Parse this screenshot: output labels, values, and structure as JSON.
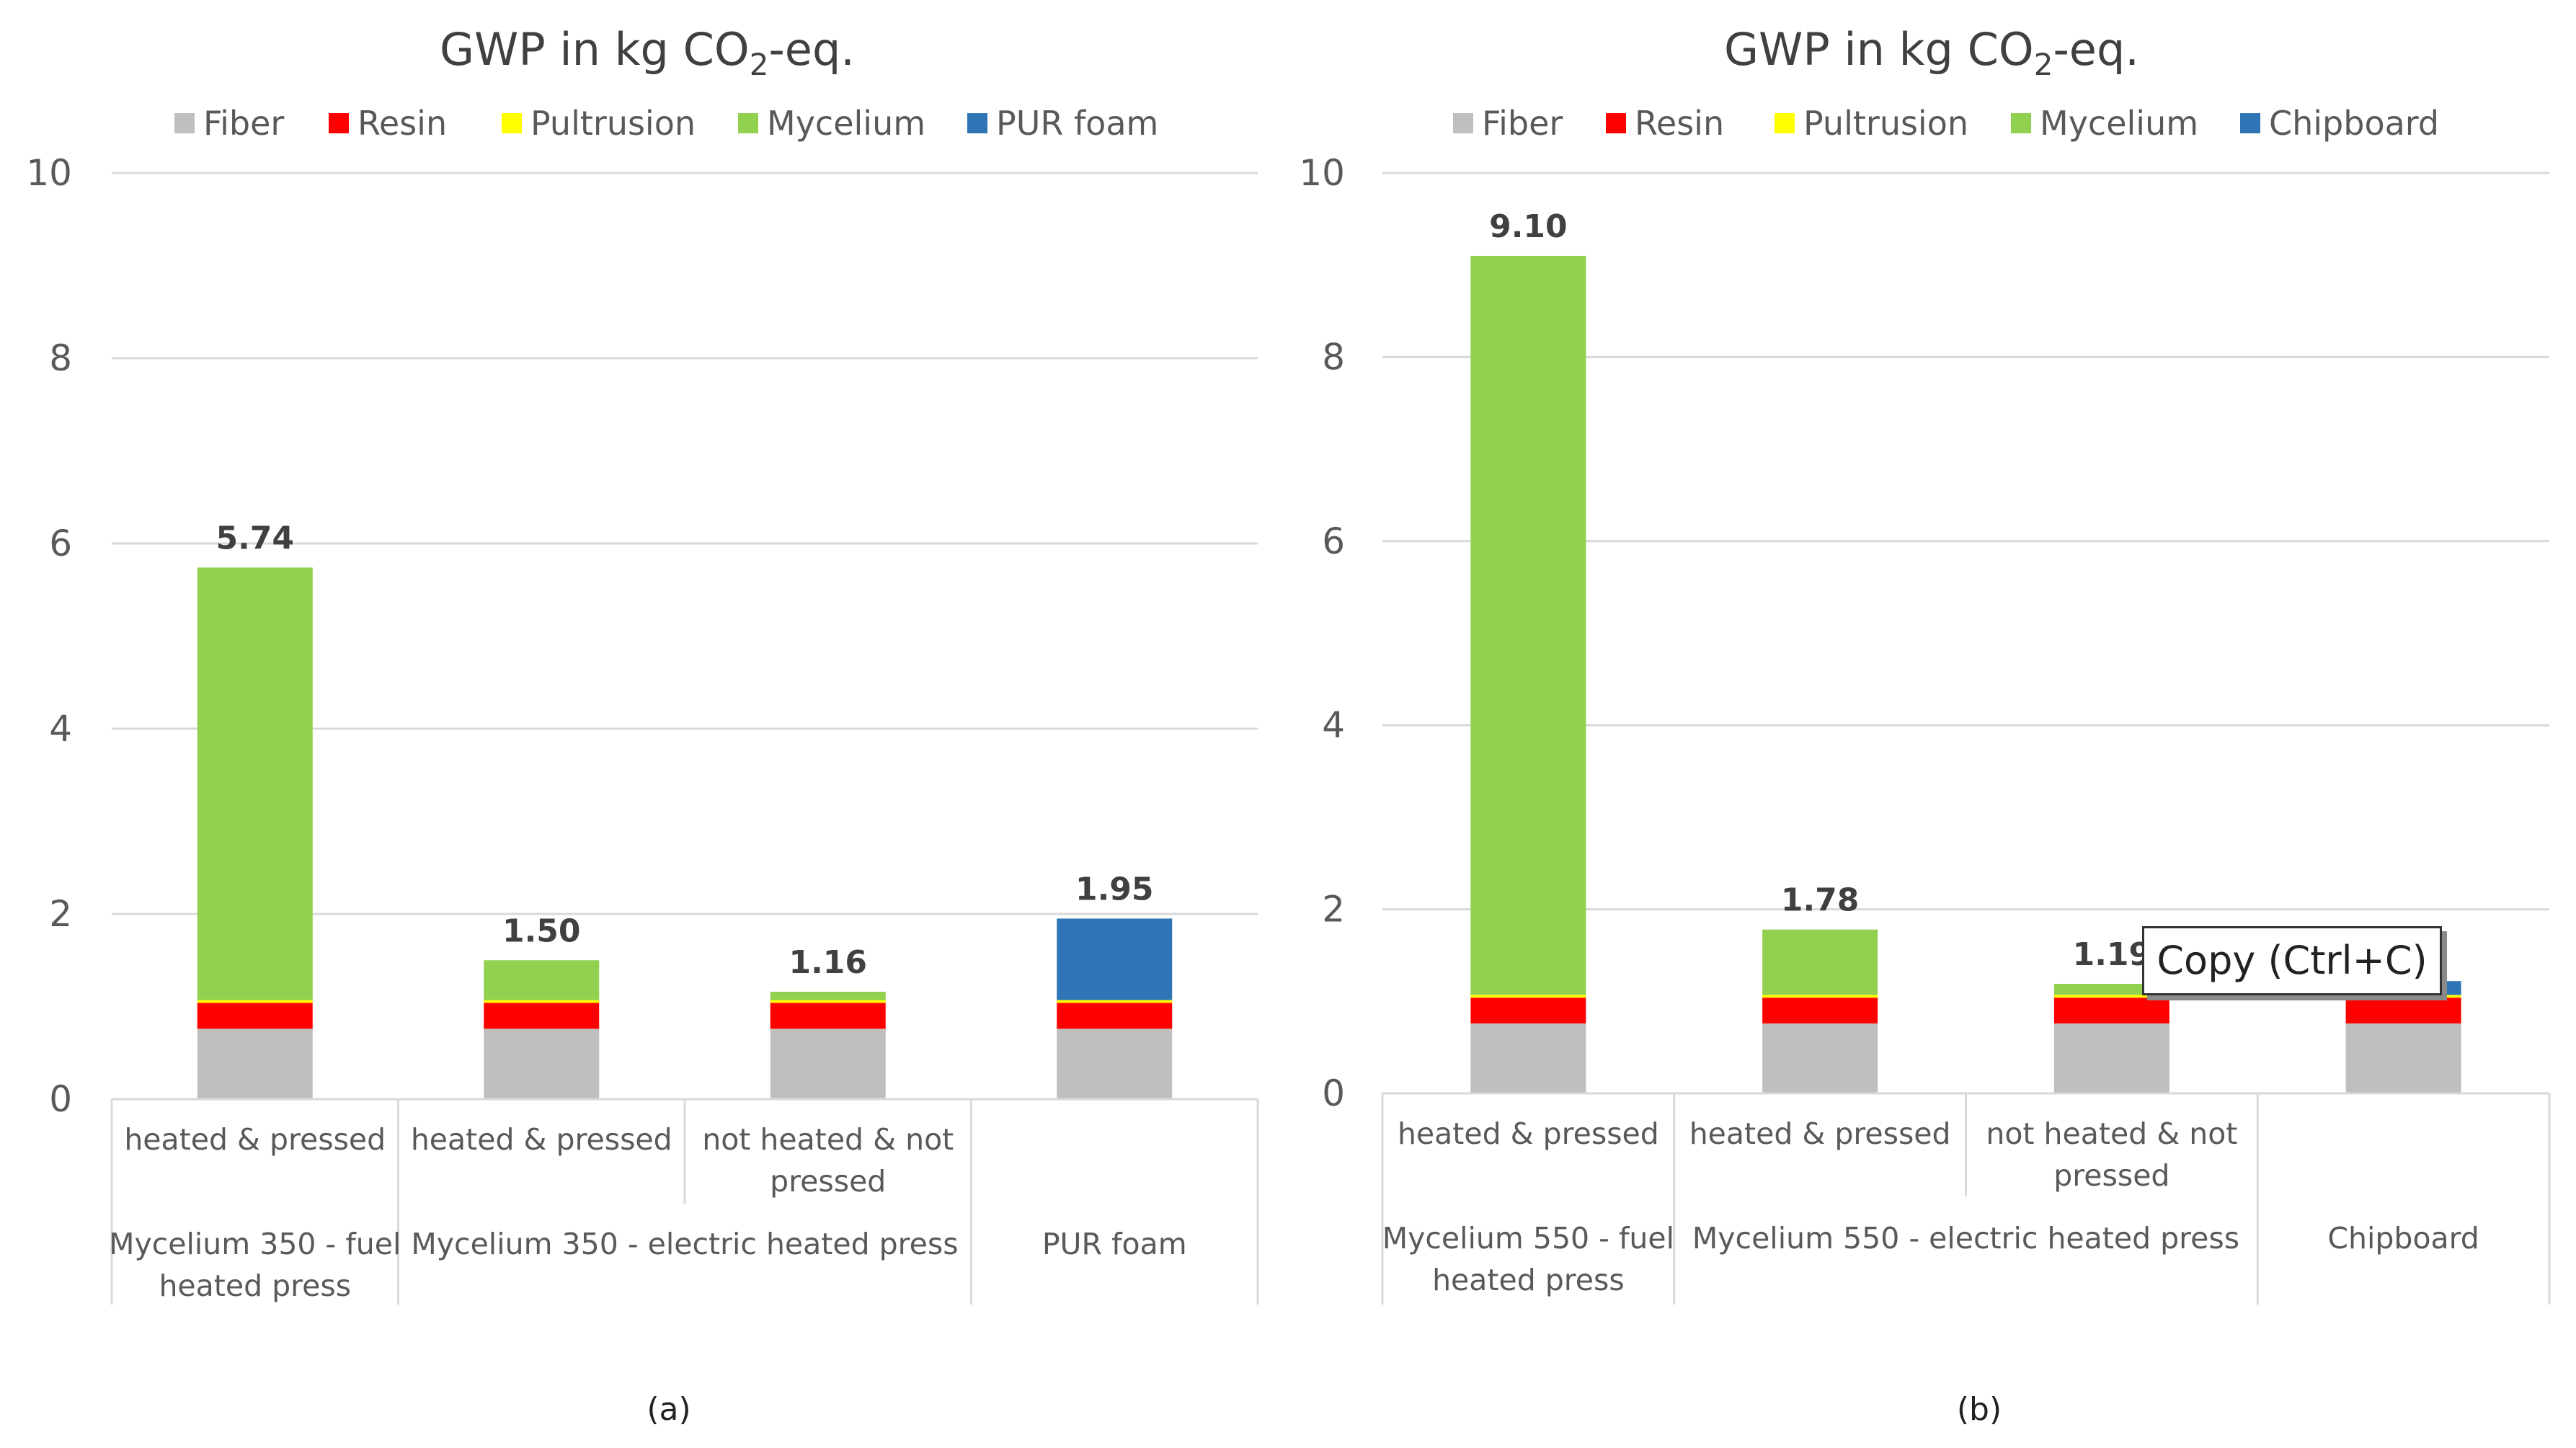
{
  "colors": {
    "Fiber": "#bfbfbf",
    "Resin": "#ff0000",
    "Pultrusion": "#ffff00",
    "Mycelium": "#92d050",
    "PUR foam": "#2e75b6",
    "Chipboard": "#2e75b6"
  },
  "chart_data": [
    {
      "type": "bar",
      "stacked": true,
      "title": "GWP in kg CO₂-eq.",
      "title_parts": {
        "main": "GWP in kg CO",
        "sub": "2",
        "tail": "-eq."
      },
      "sublabel": "(a)",
      "ylim": [
        0,
        10
      ],
      "yticks": [
        "0",
        "2",
        "4",
        "6",
        "8",
        "10"
      ],
      "legend": [
        "Fiber",
        "Resin",
        "Pultrusion",
        "Mycelium",
        "PUR foam"
      ],
      "legend_position": "top",
      "categories": [
        {
          "label": [
            "heated & pressed"
          ],
          "total_label": "5.74"
        },
        {
          "label": [
            "heated & pressed"
          ],
          "total_label": "1.50"
        },
        {
          "label": [
            "not heated & not",
            "pressed"
          ],
          "total_label": "1.16"
        },
        {
          "label": [
            ""
          ],
          "total_label": "1.95"
        }
      ],
      "groups": [
        {
          "label": [
            "Mycelium 350 - fuel",
            "heated press"
          ],
          "span": [
            0,
            0
          ]
        },
        {
          "label": [
            "Mycelium 350 - electric heated press"
          ],
          "span": [
            1,
            2
          ]
        },
        {
          "label": [
            "PUR foam"
          ],
          "span": [
            3,
            3
          ]
        }
      ],
      "series": [
        {
          "name": "Fiber",
          "values": [
            0.76,
            0.76,
            0.76,
            0.76
          ]
        },
        {
          "name": "Resin",
          "values": [
            0.28,
            0.28,
            0.28,
            0.28
          ]
        },
        {
          "name": "Pultrusion",
          "values": [
            0.03,
            0.03,
            0.03,
            0.03
          ]
        },
        {
          "name": "Mycelium",
          "values": [
            4.67,
            0.43,
            0.09,
            0.0
          ]
        },
        {
          "name": "PUR foam",
          "values": [
            0.0,
            0.0,
            0.0,
            0.88
          ]
        }
      ]
    },
    {
      "type": "bar",
      "stacked": true,
      "title": "GWP in kg CO₂-eq.",
      "title_parts": {
        "main": "GWP in kg CO",
        "sub": "2",
        "tail": "-eq."
      },
      "sublabel": "(b)",
      "ylim": [
        0,
        10
      ],
      "yticks": [
        "0",
        "2",
        "4",
        "6",
        "8",
        "10"
      ],
      "legend": [
        "Fiber",
        "Resin",
        "Pultrusion",
        "Mycelium",
        "Chipboard"
      ],
      "legend_position": "top",
      "categories": [
        {
          "label": [
            "heated & pressed"
          ],
          "total_label": "9.10"
        },
        {
          "label": [
            "heated & pressed"
          ],
          "total_label": "1.78"
        },
        {
          "label": [
            "not heated & not",
            "pressed"
          ],
          "total_label": "1.19"
        },
        {
          "label": [
            ""
          ],
          "total_label": ""
        }
      ],
      "groups": [
        {
          "label": [
            "Mycelium 550 - fuel",
            "heated press"
          ],
          "span": [
            0,
            0
          ]
        },
        {
          "label": [
            "Mycelium 550 - electric heated press"
          ],
          "span": [
            1,
            2
          ]
        },
        {
          "label": [
            "Chipboard"
          ],
          "span": [
            3,
            3
          ]
        }
      ],
      "series": [
        {
          "name": "Fiber",
          "values": [
            0.76,
            0.76,
            0.76,
            0.76
          ]
        },
        {
          "name": "Resin",
          "values": [
            0.28,
            0.28,
            0.28,
            0.28
          ]
        },
        {
          "name": "Pultrusion",
          "values": [
            0.03,
            0.03,
            0.03,
            0.03
          ]
        },
        {
          "name": "Mycelium",
          "values": [
            8.03,
            0.71,
            0.12,
            0.0
          ]
        },
        {
          "name": "Chipboard",
          "values": [
            0.0,
            0.0,
            0.0,
            0.15
          ]
        }
      ]
    }
  ],
  "tooltip": {
    "text": "Copy (Ctrl+C)"
  }
}
